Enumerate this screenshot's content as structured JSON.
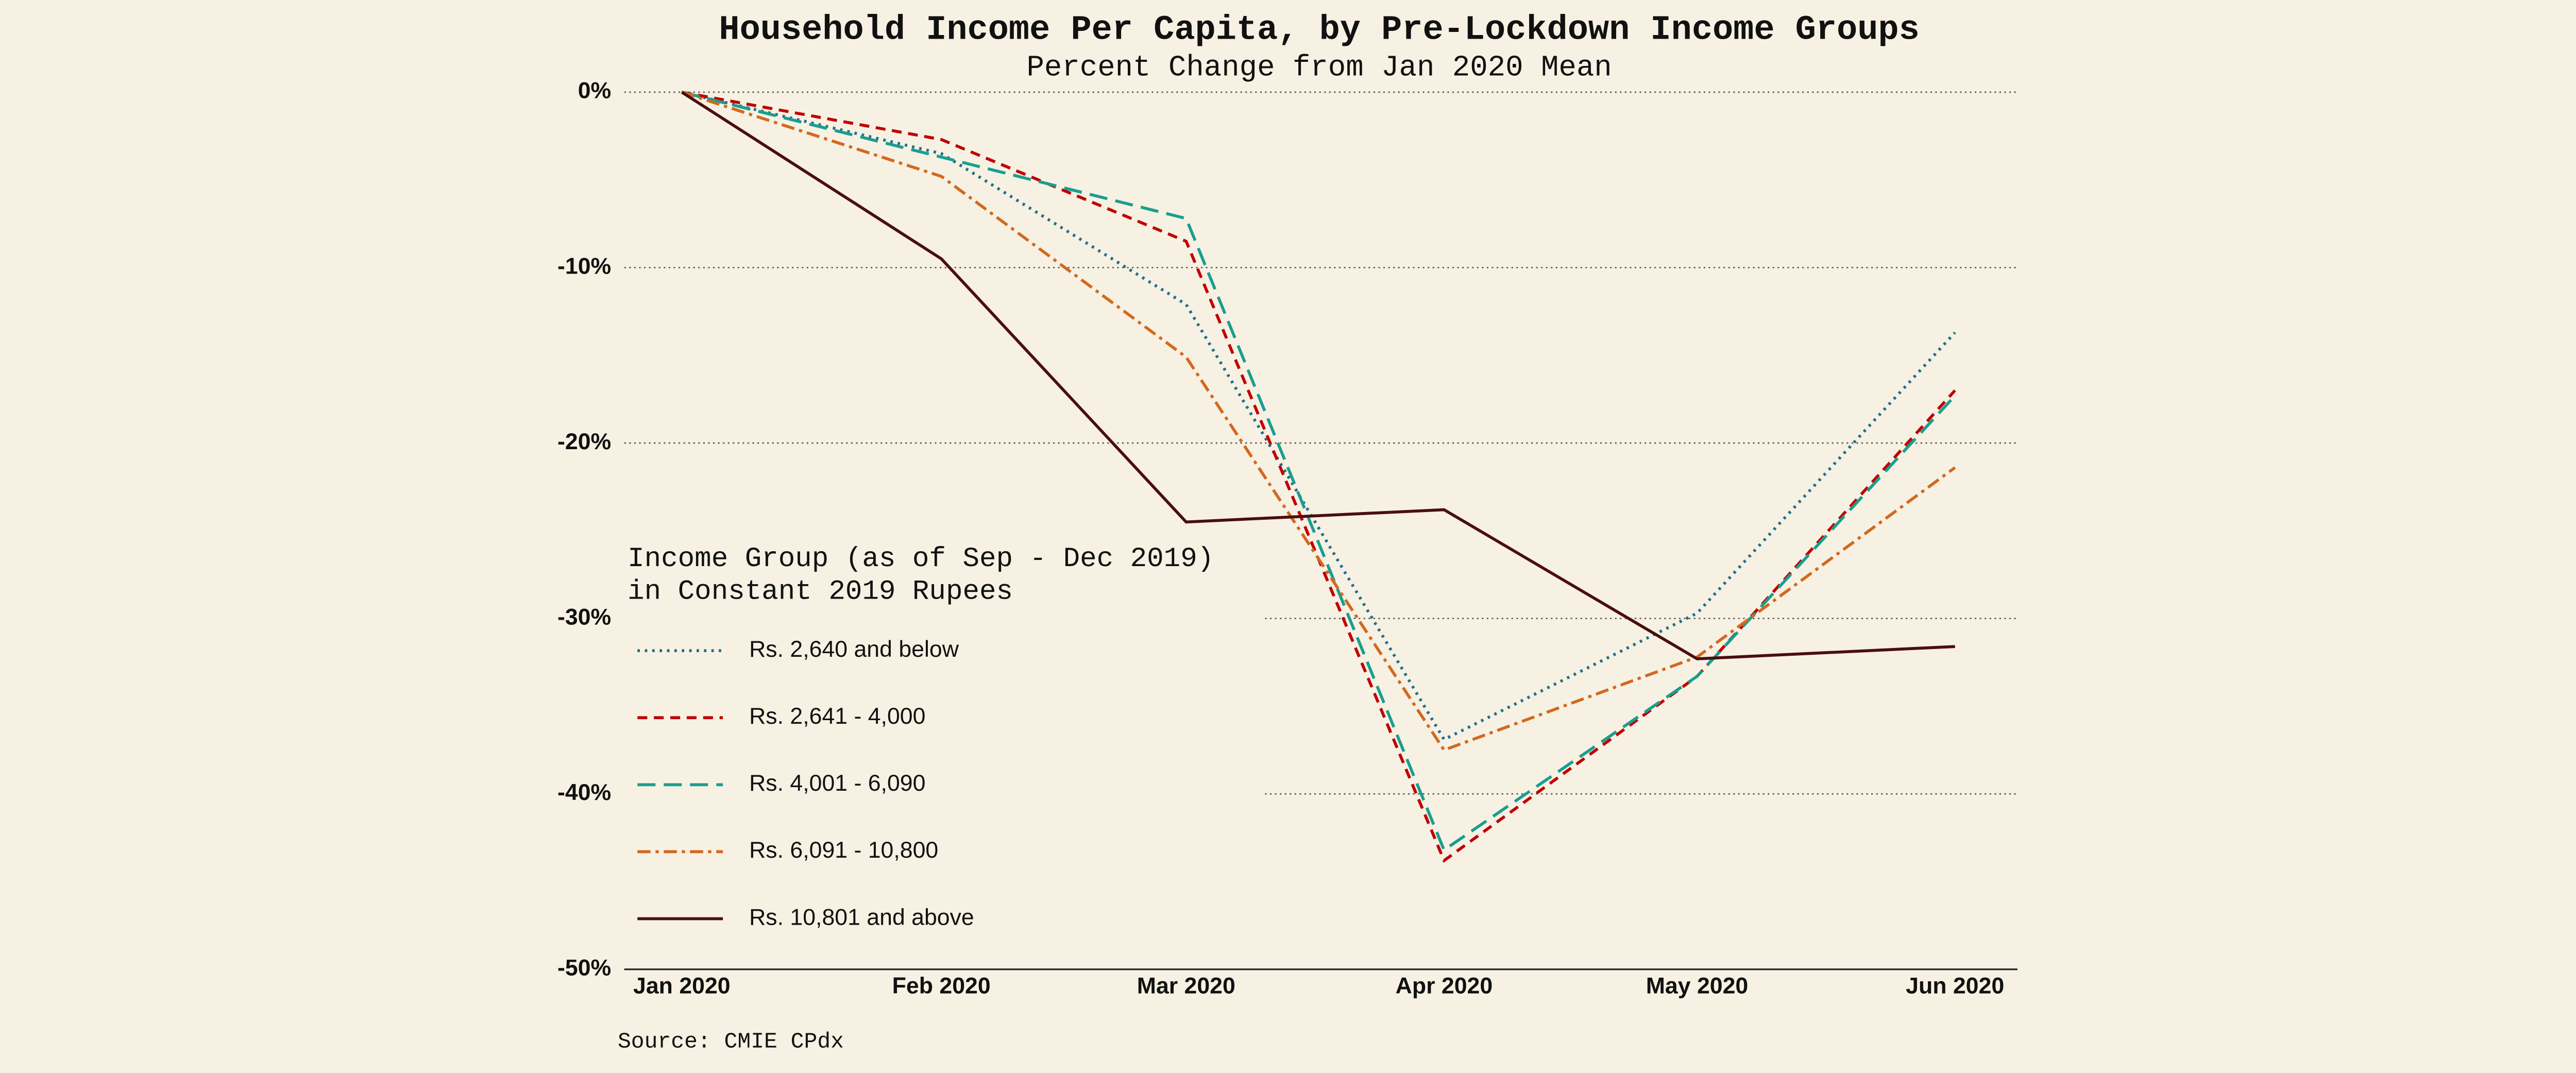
{
  "chart_data": {
    "type": "line",
    "title": "Household Income Per Capita, by Pre-Lockdown Income Groups",
    "subtitle": "Percent Change from Jan 2020 Mean",
    "source": "Source: CMIE CPdx",
    "legend_title": [
      "Income Group (as of Sep - Dec 2019)",
      "in Constant 2019 Rupees"
    ],
    "legend_position": "lower left",
    "grid": true,
    "categories": [
      "Jan 2020",
      "Feb 2020",
      "Mar 2020",
      "Apr 2020",
      "May 2020",
      "Jun 2020"
    ],
    "ylim": [
      -50,
      0
    ],
    "yticks": [
      {
        "value": 0,
        "label": "0%"
      },
      {
        "value": -10,
        "label": "-10%"
      },
      {
        "value": -20,
        "label": "-20%"
      },
      {
        "value": -30,
        "label": "-30%"
      },
      {
        "value": -40,
        "label": "-40%"
      },
      {
        "value": -50,
        "label": "-50%"
      }
    ],
    "series": [
      {
        "name": "Rs. 2,640 and below",
        "color": "#1f6f8b",
        "linestyle": "dotted",
        "values": [
          0,
          -3.5,
          -12.1,
          -36.9,
          -29.7,
          -13.7
        ]
      },
      {
        "name": "Rs. 2,641 - 4,000",
        "color": "#c00000",
        "linestyle": "dashed",
        "values": [
          0,
          -2.7,
          -8.5,
          -43.8,
          -33.3,
          -17.0
        ]
      },
      {
        "name": "Rs. 4,001 - 6,090",
        "color": "#1a9e8f",
        "linestyle": "longdash",
        "values": [
          0,
          -3.7,
          -7.2,
          -43.2,
          -33.3,
          -17.3
        ]
      },
      {
        "name": "Rs. 6,091 - 10,800",
        "color": "#d2691e",
        "linestyle": "dashdot",
        "values": [
          0,
          -4.8,
          -15.1,
          -37.5,
          -32.2,
          -21.4
        ]
      },
      {
        "name": "Rs. 10,801 and above",
        "color": "#4a0e0e",
        "linestyle": "solid",
        "values": [
          0,
          -9.5,
          -24.5,
          -23.8,
          -32.3,
          -31.6
        ]
      }
    ]
  }
}
